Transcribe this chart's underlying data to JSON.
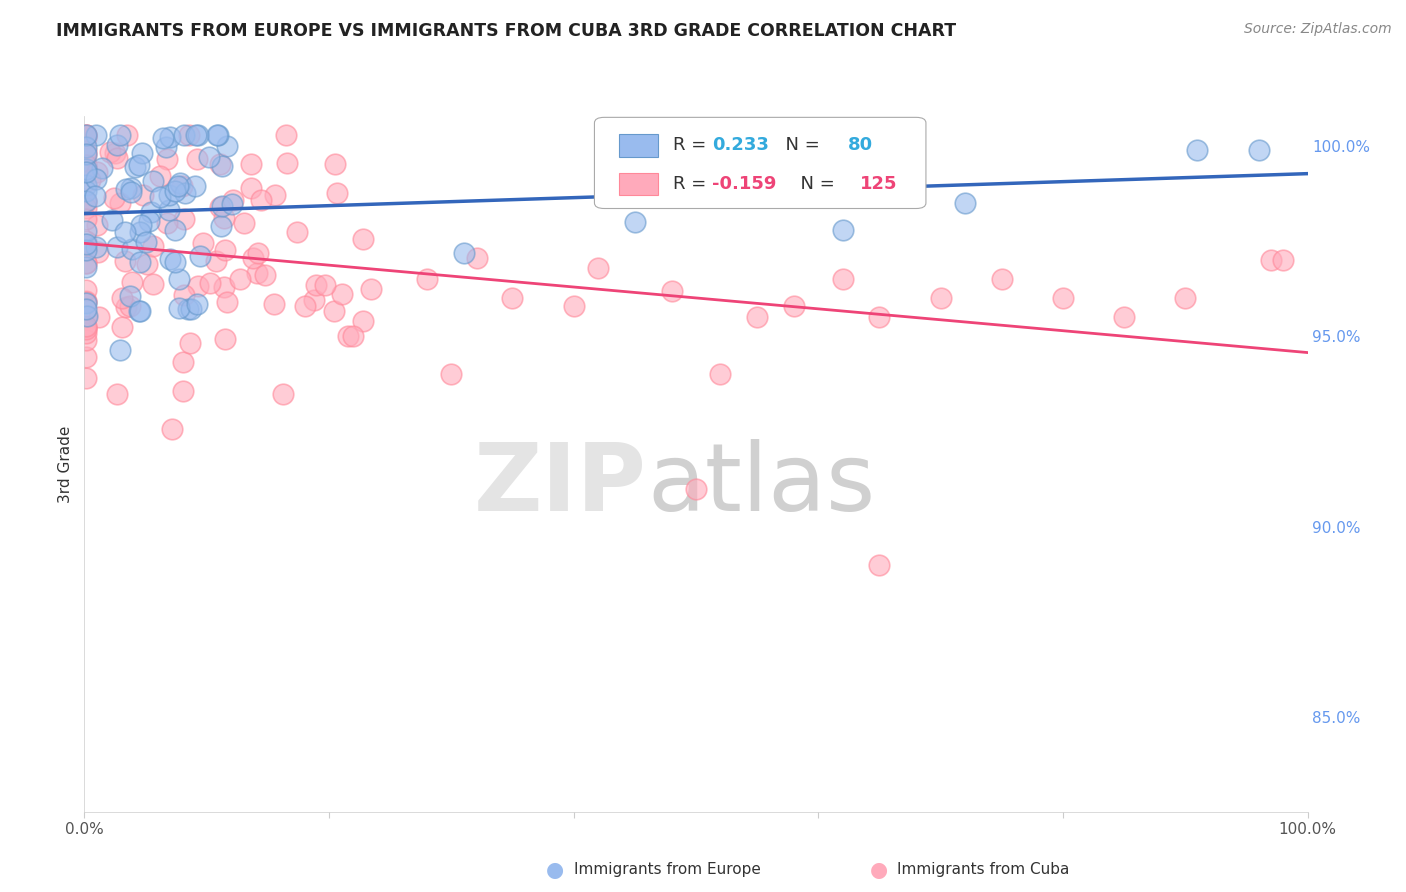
{
  "title": "IMMIGRANTS FROM EUROPE VS IMMIGRANTS FROM CUBA 3RD GRADE CORRELATION CHART",
  "source": "Source: ZipAtlas.com",
  "ylabel": "3rd Grade",
  "legend_blue_label": "Immigrants from Europe",
  "legend_pink_label": "Immigrants from Cuba",
  "R_blue": 0.233,
  "N_blue": 80,
  "R_pink": -0.159,
  "N_pink": 125,
  "color_blue_fill": "#99BBEE",
  "color_blue_edge": "#6699CC",
  "color_pink_fill": "#FFAABB",
  "color_pink_edge": "#FF8899",
  "color_blue_line": "#3366BB",
  "color_pink_line": "#EE4477",
  "color_blue_text": "#33AADD",
  "color_pink_text": "#EE4477",
  "color_raxis": "#6699EE",
  "watermark_zip": "#E0E0E0",
  "watermark_atlas": "#C8C8C8",
  "background_color": "#FFFFFF",
  "xlim": [
    0.0,
    1.0
  ],
  "ylim": [
    0.825,
    1.008
  ],
  "yticks": [
    1.0,
    0.95,
    0.9,
    0.85
  ],
  "ytick_labels": [
    "100.0%",
    "95.0%",
    "90.0%",
    "85.0%"
  ],
  "grid_color": "#DDDDDD",
  "legend_box_color": "#FFFFFF",
  "legend_border_color": "#AAAAAA"
}
